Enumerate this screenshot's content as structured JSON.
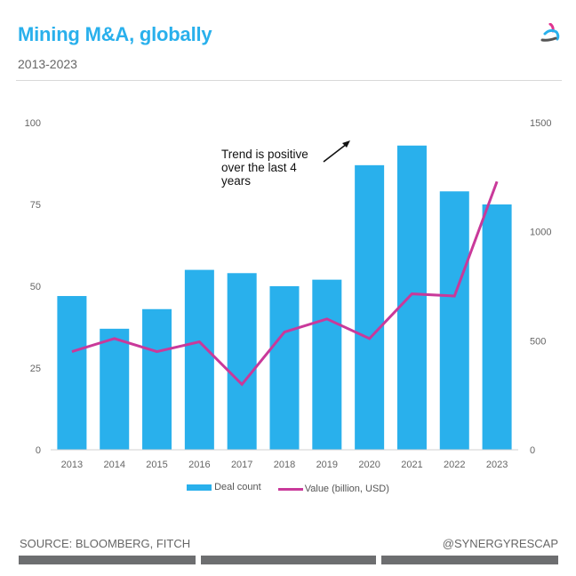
{
  "header": {
    "title": "Mining M&A, globally",
    "subtitle": "2013-2023",
    "logo_icon": "synergy-triangle-logo"
  },
  "colors": {
    "title": "#29b0ec",
    "bar": "#29b0ec",
    "line": "#c9399a",
    "axis_text": "#666666",
    "footer_bar": "#6d6e70"
  },
  "chart_data": {
    "type": "bar",
    "combo": "bar+line",
    "title": "Mining M&A, globally",
    "subtitle": "2013-2023",
    "categories": [
      "2013",
      "2014",
      "2015",
      "2016",
      "2017",
      "2018",
      "2019",
      "2020",
      "2021",
      "2022",
      "2023"
    ],
    "series": [
      {
        "name": "Deal count",
        "type": "bar",
        "axis": "left",
        "values": [
          47,
          37,
          43,
          55,
          54,
          50,
          52,
          87,
          93,
          79,
          75
        ]
      },
      {
        "name": "Value (billion, USD)",
        "type": "line",
        "axis": "right",
        "values": [
          450,
          510,
          450,
          495,
          300,
          540,
          600,
          510,
          715,
          705,
          1230
        ]
      }
    ],
    "left_axis": {
      "ylim": [
        0,
        100
      ],
      "ticks": [
        "0",
        "25",
        "50",
        "75",
        "100"
      ],
      "tick_values": [
        0,
        25,
        50,
        75,
        100
      ]
    },
    "right_axis": {
      "ylim": [
        0,
        1500
      ],
      "ticks": [
        "0",
        "500",
        "1000",
        "1500"
      ],
      "tick_values": [
        0,
        500,
        1000,
        1500
      ]
    },
    "xlabel": "",
    "ylabel": "",
    "grid": false,
    "legend_position": "bottom",
    "annotation": {
      "lines": [
        "Trend is positive",
        "over the last 4",
        "years"
      ],
      "has_arrow": true
    }
  },
  "footer": {
    "source": "SOURCE: BLOOMBERG, FITCH",
    "handle": "@SYNERGYRESCAP"
  }
}
